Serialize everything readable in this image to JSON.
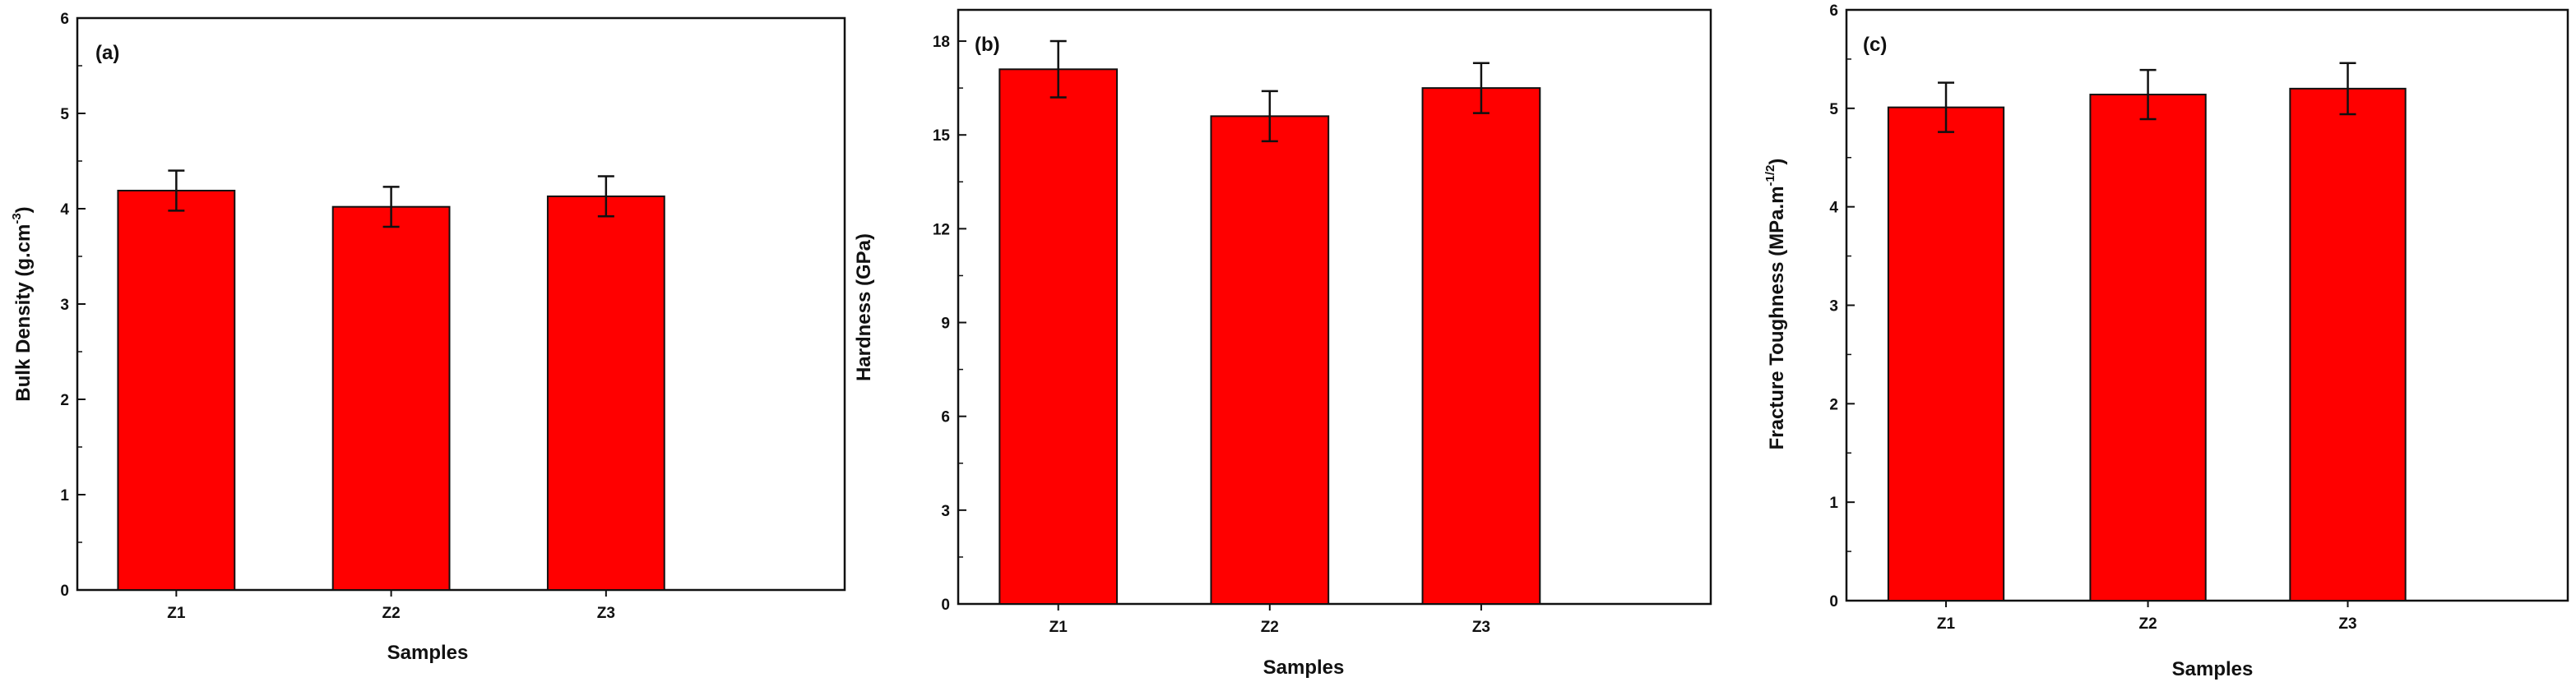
{
  "chart_data": [
    {
      "type": "bar",
      "panel_label": "(a)",
      "categories": [
        "Z1",
        "Z2",
        "Z3"
      ],
      "values": [
        4.19,
        4.02,
        4.13
      ],
      "errors": [
        0.21,
        0.21,
        0.21
      ],
      "xlabel": "Samples",
      "ylabel_main": "Bulk Density (g.cm",
      "ylabel_sup": "-3",
      "ylabel_end": ")",
      "ylim": [
        0,
        6
      ],
      "yticks": [
        "0",
        "1",
        "2",
        "3",
        "4",
        "5",
        "6"
      ],
      "bar_color": "#ff0000",
      "grid": false
    },
    {
      "type": "bar",
      "panel_label": "(b)",
      "categories": [
        "Z1",
        "Z2",
        "Z3"
      ],
      "values": [
        17.1,
        15.6,
        16.5
      ],
      "errors": [
        0.9,
        0.8,
        0.8
      ],
      "xlabel": "Samples",
      "ylabel_main": "Hardness (GPa)",
      "ylabel_sup": "",
      "ylabel_end": "",
      "ylim": [
        0,
        19
      ],
      "yticks": [
        "0",
        "3",
        "6",
        "9",
        "12",
        "15",
        "18"
      ],
      "bar_color": "#ff0000",
      "grid": false
    },
    {
      "type": "bar",
      "panel_label": "(c)",
      "categories": [
        "Z1",
        "Z2",
        "Z3"
      ],
      "values": [
        5.01,
        5.14,
        5.2
      ],
      "errors": [
        0.25,
        0.25,
        0.26
      ],
      "xlabel": "Samples",
      "ylabel_main": "Fracture Toughness (MPa.m",
      "ylabel_sup": "-1/2",
      "ylabel_end": ")",
      "ylim": [
        0,
        6
      ],
      "yticks": [
        "0",
        "1",
        "2",
        "3",
        "4",
        "5",
        "6"
      ],
      "bar_color": "#ff0000",
      "grid": false
    }
  ]
}
